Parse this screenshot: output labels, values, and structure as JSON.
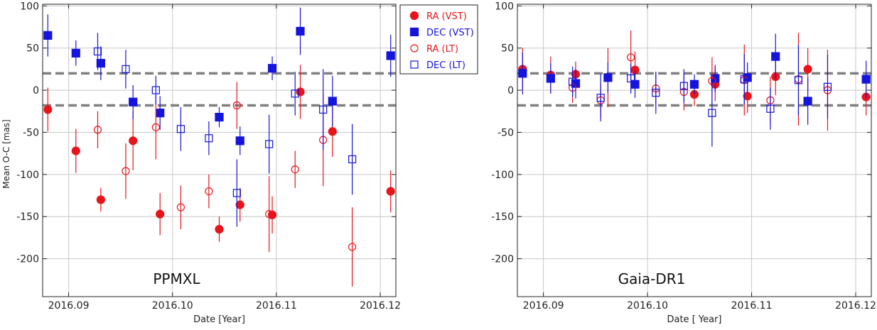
{
  "legend": {
    "placement": "top-center",
    "entries": [
      {
        "label": "RA (VST)",
        "marker": "filled-circle",
        "color": "#e8141b"
      },
      {
        "label": "DEC (VST)",
        "marker": "filled-square",
        "color": "#1414dc"
      },
      {
        "label": "RA (LT)",
        "marker": "open-circle",
        "color": "#e8141b"
      },
      {
        "label": "DEC (LT)",
        "marker": "open-square",
        "color": "#1414dc"
      }
    ]
  },
  "colors": {
    "ra": "#e8141b",
    "dec": "#1414dc",
    "dashed_line": "#808080",
    "grid": "#c8c8c8"
  },
  "chart_data": [
    {
      "type": "scatter",
      "title": "",
      "annotation": "PPMXL",
      "xlabel": "Date [Year]",
      "ylabel": "Mean O-C [mas]",
      "xlim": [
        2016.0875,
        2016.1215
      ],
      "ylim": [
        -245,
        102
      ],
      "x_ticks": [
        2016.09,
        2016.1,
        2016.11,
        2016.12
      ],
      "x_tick_labels": [
        "2016.09",
        "2016.10",
        "2016.11",
        "2016.12"
      ],
      "y_ticks": [
        100,
        50,
        0,
        -50,
        -100,
        -150,
        -200
      ],
      "y_tick_labels": [
        "100",
        "50",
        "0",
        "-50",
        "-100",
        "-150",
        "-200"
      ],
      "grid": true,
      "hlines": [
        20,
        -18
      ],
      "series": [
        {
          "name": "RA (VST)",
          "points": [
            {
              "x": 2016.088,
              "y": -23,
              "err": 26
            },
            {
              "x": 2016.0907,
              "y": -72,
              "err": 26
            },
            {
              "x": 2016.0931,
              "y": -130,
              "err": 14
            },
            {
              "x": 2016.0962,
              "y": -60,
              "err": 35
            },
            {
              "x": 2016.0988,
              "y": -147,
              "err": 25
            },
            {
              "x": 2016.1045,
              "y": -165,
              "err": 15
            },
            {
              "x": 2016.1065,
              "y": -136,
              "err": 20
            },
            {
              "x": 2016.1096,
              "y": -148,
              "err": 22
            },
            {
              "x": 2016.1123,
              "y": -2,
              "err": 32
            },
            {
              "x": 2016.1154,
              "y": -49,
              "err": 30
            },
            {
              "x": 2016.121,
              "y": -120,
              "err": 25
            }
          ]
        },
        {
          "name": "DEC (VST)",
          "points": [
            {
              "x": 2016.088,
              "y": 65,
              "err": 25
            },
            {
              "x": 2016.0907,
              "y": 44,
              "err": 15
            },
            {
              "x": 2016.0931,
              "y": 32,
              "err": 20
            },
            {
              "x": 2016.0962,
              "y": -14,
              "err": 20
            },
            {
              "x": 2016.0988,
              "y": -27,
              "err": 20
            },
            {
              "x": 2016.1045,
              "y": -32,
              "err": 12
            },
            {
              "x": 2016.1065,
              "y": -60,
              "err": 17
            },
            {
              "x": 2016.1096,
              "y": 26,
              "err": 14
            },
            {
              "x": 2016.1123,
              "y": 70,
              "err": 28
            },
            {
              "x": 2016.1154,
              "y": -13,
              "err": 30
            },
            {
              "x": 2016.121,
              "y": 41,
              "err": 25
            }
          ]
        },
        {
          "name": "RA (LT)",
          "points": [
            {
              "x": 2016.0928,
              "y": -47,
              "err": 22
            },
            {
              "x": 2016.0955,
              "y": -96,
              "err": 33
            },
            {
              "x": 2016.0984,
              "y": -44,
              "err": 38
            },
            {
              "x": 2016.1008,
              "y": -139,
              "err": 26
            },
            {
              "x": 2016.1035,
              "y": -120,
              "err": 20
            },
            {
              "x": 2016.1062,
              "y": -18,
              "err": 28
            },
            {
              "x": 2016.1093,
              "y": -147,
              "err": 45
            },
            {
              "x": 2016.1118,
              "y": -94,
              "err": 22
            },
            {
              "x": 2016.1145,
              "y": -59,
              "err": 55
            },
            {
              "x": 2016.1173,
              "y": -186,
              "err": 47
            }
          ]
        },
        {
          "name": "DEC (LT)",
          "points": [
            {
              "x": 2016.0928,
              "y": 46,
              "err": 22
            },
            {
              "x": 2016.0955,
              "y": 25,
              "err": 23
            },
            {
              "x": 2016.0984,
              "y": 0,
              "err": 17
            },
            {
              "x": 2016.1008,
              "y": -46,
              "err": 26
            },
            {
              "x": 2016.1035,
              "y": -57,
              "err": 20
            },
            {
              "x": 2016.1062,
              "y": -122,
              "err": 40
            },
            {
              "x": 2016.1093,
              "y": -64,
              "err": 35
            },
            {
              "x": 2016.1118,
              "y": -4,
              "err": 26
            },
            {
              "x": 2016.1145,
              "y": -23,
              "err": 48
            },
            {
              "x": 2016.1173,
              "y": -82,
              "err": 42
            }
          ]
        }
      ]
    },
    {
      "type": "scatter",
      "title": "",
      "annotation": "Gaia-DR1",
      "xlabel": "Date [ Year]",
      "ylabel": "",
      "xlim": [
        2016.0875,
        2016.1215
      ],
      "ylim": [
        -245,
        102
      ],
      "x_ticks": [
        2016.09,
        2016.1,
        2016.11,
        2016.12
      ],
      "x_tick_labels": [
        "2016.09",
        "2016.10",
        "2016.11",
        "2016.12"
      ],
      "y_ticks": [
        100,
        50,
        0,
        -50,
        -100,
        -150,
        -200
      ],
      "y_tick_labels": [
        "100",
        "50",
        "0",
        "-50",
        "-100",
        "-150",
        "-200"
      ],
      "grid": true,
      "hlines": [
        20,
        -18
      ],
      "series": [
        {
          "name": "RA (VST)",
          "points": [
            {
              "x": 2016.088,
              "y": 25,
              "err": 25
            },
            {
              "x": 2016.0907,
              "y": 18,
              "err": 22
            },
            {
              "x": 2016.0931,
              "y": 19,
              "err": 15
            },
            {
              "x": 2016.0962,
              "y": 15,
              "err": 35
            },
            {
              "x": 2016.0988,
              "y": 24,
              "err": 22
            },
            {
              "x": 2016.1045,
              "y": -5,
              "err": 14
            },
            {
              "x": 2016.1065,
              "y": 7,
              "err": 20
            },
            {
              "x": 2016.1096,
              "y": -7,
              "err": 20
            },
            {
              "x": 2016.1123,
              "y": 16,
              "err": 22
            },
            {
              "x": 2016.1154,
              "y": 25,
              "err": 25
            },
            {
              "x": 2016.121,
              "y": -8,
              "err": 22
            }
          ]
        },
        {
          "name": "DEC (VST)",
          "points": [
            {
              "x": 2016.088,
              "y": 20,
              "err": 25
            },
            {
              "x": 2016.0907,
              "y": 14,
              "err": 18
            },
            {
              "x": 2016.0931,
              "y": 8,
              "err": 18
            },
            {
              "x": 2016.0962,
              "y": 15,
              "err": 18
            },
            {
              "x": 2016.0988,
              "y": 7,
              "err": 16
            },
            {
              "x": 2016.1045,
              "y": 7,
              "err": 12
            },
            {
              "x": 2016.1065,
              "y": 14,
              "err": 16
            },
            {
              "x": 2016.1096,
              "y": 15,
              "err": 18
            },
            {
              "x": 2016.1123,
              "y": 40,
              "err": 27
            },
            {
              "x": 2016.1154,
              "y": -13,
              "err": 28
            },
            {
              "x": 2016.121,
              "y": 13,
              "err": 22
            }
          ]
        },
        {
          "name": "RA (LT)",
          "points": [
            {
              "x": 2016.0928,
              "y": 3,
              "err": 18
            },
            {
              "x": 2016.0955,
              "y": -12,
              "err": 20
            },
            {
              "x": 2016.0984,
              "y": 39,
              "err": 32
            },
            {
              "x": 2016.1008,
              "y": 2,
              "err": 20
            },
            {
              "x": 2016.1035,
              "y": -2,
              "err": 22
            },
            {
              "x": 2016.1062,
              "y": 11,
              "err": 28
            },
            {
              "x": 2016.1093,
              "y": 12,
              "err": 42
            },
            {
              "x": 2016.1118,
              "y": -12,
              "err": 28
            },
            {
              "x": 2016.1145,
              "y": 13,
              "err": 55
            },
            {
              "x": 2016.1173,
              "y": 0,
              "err": 48
            }
          ]
        },
        {
          "name": "DEC (LT)",
          "points": [
            {
              "x": 2016.0928,
              "y": 10,
              "err": 18
            },
            {
              "x": 2016.0955,
              "y": -9,
              "err": 28
            },
            {
              "x": 2016.0984,
              "y": 14,
              "err": 18
            },
            {
              "x": 2016.1008,
              "y": -3,
              "err": 25
            },
            {
              "x": 2016.1035,
              "y": 5,
              "err": 20
            },
            {
              "x": 2016.1062,
              "y": -27,
              "err": 40
            },
            {
              "x": 2016.1093,
              "y": 13,
              "err": 30
            },
            {
              "x": 2016.1118,
              "y": -22,
              "err": 25
            },
            {
              "x": 2016.1145,
              "y": 12,
              "err": 42
            },
            {
              "x": 2016.1173,
              "y": 4,
              "err": 38
            }
          ]
        }
      ]
    }
  ]
}
